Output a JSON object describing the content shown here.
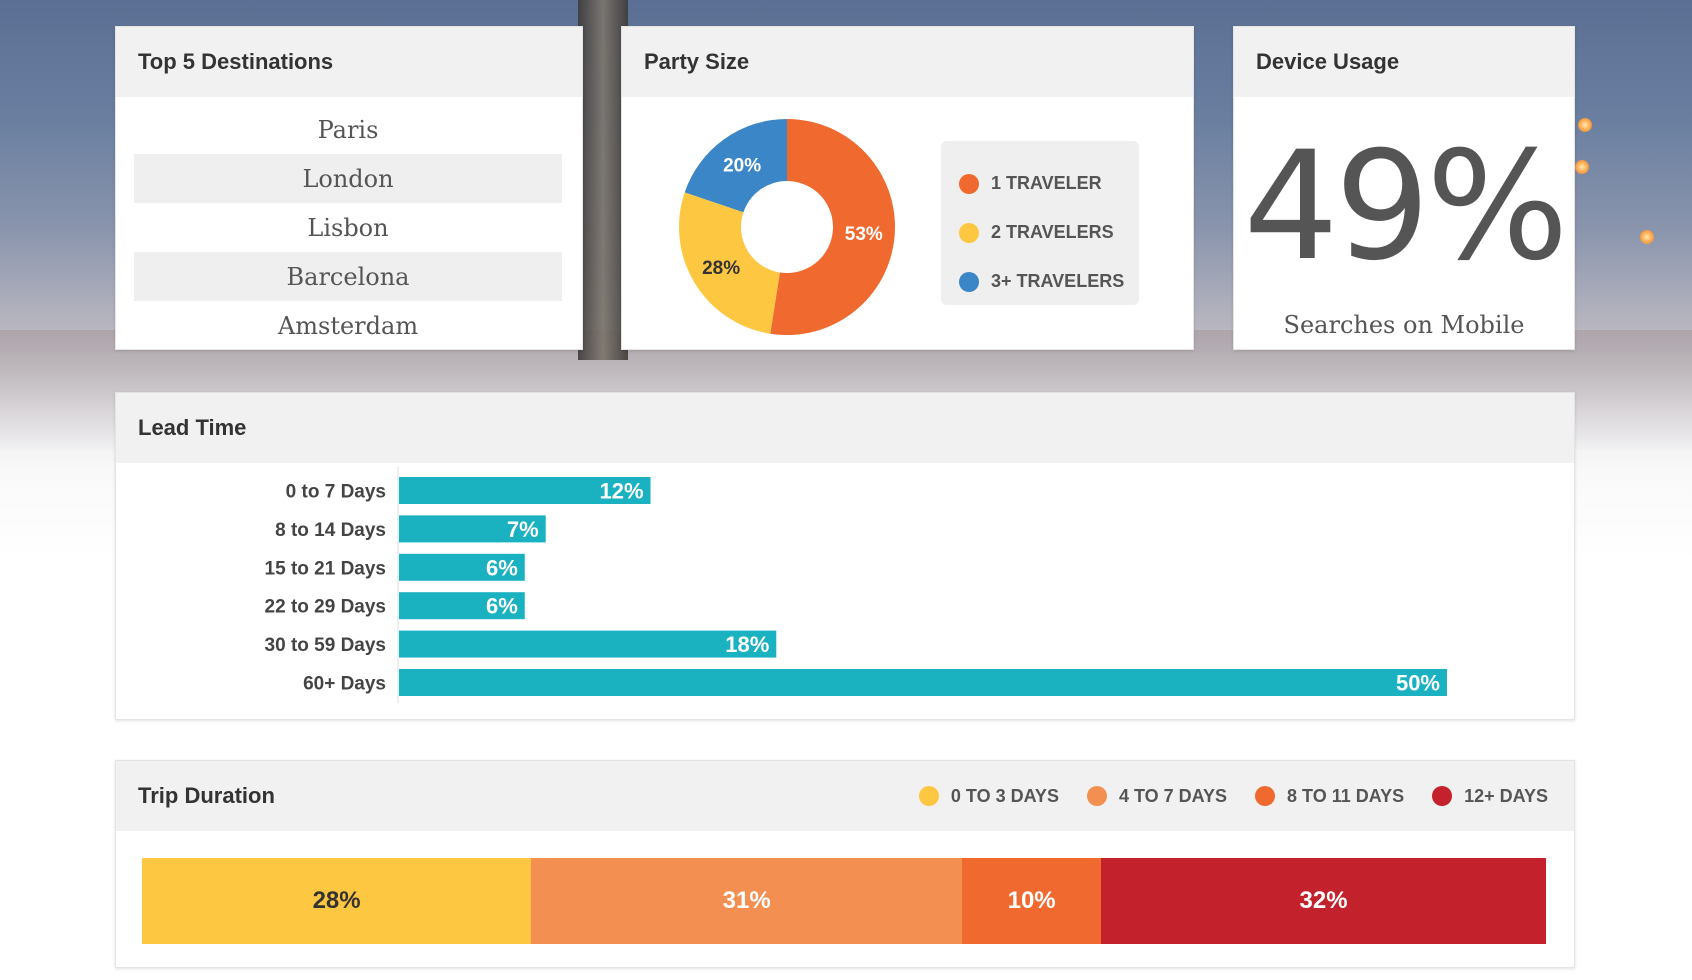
{
  "destinations": {
    "title": "Top 5 Destinations",
    "items": [
      "Paris",
      "London",
      "Lisbon",
      "Barcelona",
      "Amsterdam"
    ]
  },
  "party": {
    "title": "Party Size",
    "legend": [
      {
        "label": "1 TRAVELER",
        "color": "#f06a30"
      },
      {
        "label": "2 TRAVELERS",
        "color": "#fdc741"
      },
      {
        "label": "3+ TRAVELERS",
        "color": "#3b86c6"
      }
    ],
    "slice_labels": [
      "53%",
      "28%",
      "20%"
    ]
  },
  "device": {
    "title": "Device Usage",
    "value": "49%",
    "caption": "Searches on Mobile"
  },
  "lead": {
    "title": "Lead Time",
    "bar_color": "#1ab2c1",
    "labels": [
      "0 to 7 Days",
      "8 to 14 Days",
      "15 to 21 Days",
      "22 to 29 Days",
      "30 to 59 Days",
      "60+ Days"
    ],
    "value_labels": [
      "12%",
      "7%",
      "6%",
      "6%",
      "18%",
      "50%"
    ]
  },
  "trip": {
    "title": "Trip Duration",
    "legend": [
      {
        "label": "0 TO 3 DAYS",
        "color": "#fdc741"
      },
      {
        "label": "4 TO 7 DAYS",
        "color": "#f39051"
      },
      {
        "label": "8 TO 11 DAYS",
        "color": "#f06a30"
      },
      {
        "label": "12+ DAYS",
        "color": "#c3222d"
      }
    ],
    "segment_labels": [
      "28%",
      "31%",
      "10%",
      "32%"
    ]
  },
  "chart_data": [
    {
      "type": "pie",
      "title": "Party Size",
      "categories": [
        "1 TRAVELER",
        "2 TRAVELERS",
        "3+ TRAVELERS"
      ],
      "values": [
        53,
        28,
        20
      ],
      "legend": "right"
    },
    {
      "type": "bar",
      "title": "Lead Time",
      "orientation": "horizontal",
      "categories": [
        "0 to 7 Days",
        "8 to 14 Days",
        "15 to 21 Days",
        "22 to 29 Days",
        "30 to 59 Days",
        "60+ Days"
      ],
      "values": [
        12,
        7,
        6,
        6,
        18,
        50
      ],
      "xlim": [
        0,
        50
      ],
      "grid": false
    },
    {
      "type": "bar",
      "title": "Trip Duration",
      "orientation": "stacked-horizontal",
      "categories": [
        "0 TO 3 DAYS",
        "4 TO 7 DAYS",
        "8 TO 11 DAYS",
        "12+ DAYS"
      ],
      "values": [
        28,
        31,
        10,
        32
      ],
      "legend": "top-right"
    }
  ]
}
